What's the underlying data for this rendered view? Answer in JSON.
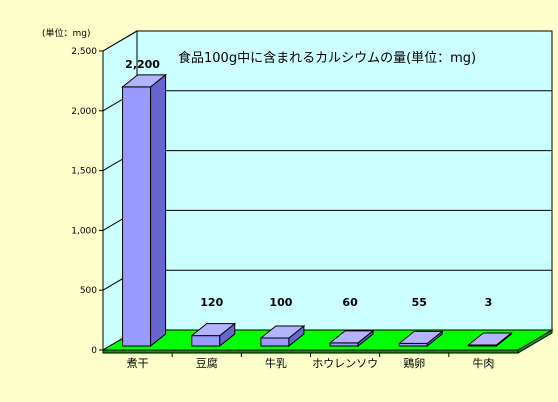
{
  "chart_data": {
    "type": "bar",
    "title": "食品100g中に含まれるカルシウムの量(単位：mg)",
    "ylabel": "(単位：mg)",
    "ylim": [
      0,
      2500
    ],
    "yticks": [
      0,
      500,
      1000,
      1500,
      2000,
      2500
    ],
    "ytick_labels": [
      "0",
      "500",
      "1,000",
      "1,500",
      "2,000",
      "2,500"
    ],
    "categories": [
      "煮干",
      "豆腐",
      "牛乳",
      "ホウレンソウ",
      "鶏卵",
      "牛肉"
    ],
    "values": [
      2200,
      120,
      100,
      60,
      55,
      3
    ],
    "data_labels": [
      "2,200",
      "120",
      "100",
      "60",
      "55",
      "3"
    ],
    "grid": true,
    "legend": "none",
    "colors": {
      "background": "#ffffcc",
      "plot_wall": "#ccffff",
      "floor": "#00ff00",
      "bar_front": "#9999ff",
      "bar_top": "#b3b3ff",
      "bar_side": "#6666cc"
    }
  }
}
